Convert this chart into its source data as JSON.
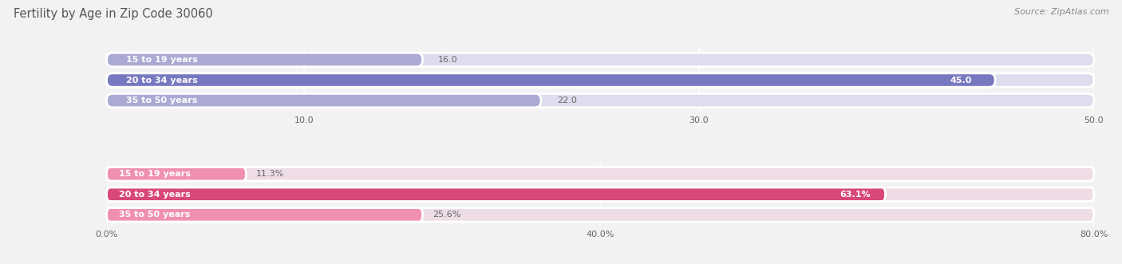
{
  "title": "Fertility by Age in Zip Code 30060",
  "source": "Source: ZipAtlas.com",
  "top_bars": {
    "categories": [
      "15 to 19 years",
      "20 to 34 years",
      "35 to 50 years"
    ],
    "values": [
      16.0,
      45.0,
      22.0
    ],
    "value_labels": [
      "16.0",
      "45.0",
      "22.0"
    ],
    "xlim": [
      0,
      50
    ],
    "xticks": [
      10.0,
      30.0,
      50.0
    ],
    "xtick_labels": [
      "10.0",
      "30.0",
      "50.0"
    ],
    "colors": [
      "#aaaad4",
      "#7878c0",
      "#aaaad4"
    ],
    "bar_bg": "#dddded"
  },
  "bottom_bars": {
    "categories": [
      "15 to 19 years",
      "20 to 34 years",
      "35 to 50 years"
    ],
    "values": [
      11.3,
      63.1,
      25.6
    ],
    "value_labels": [
      "11.3%",
      "63.1%",
      "25.6%"
    ],
    "xlim": [
      0,
      80
    ],
    "xticks": [
      0.0,
      40.0,
      80.0
    ],
    "xtick_labels": [
      "0.0%",
      "40.0%",
      "80.0%"
    ],
    "colors": [
      "#f090b0",
      "#d84878",
      "#f090b0"
    ],
    "bar_bg": "#eedde6"
  },
  "label_color": "#666666",
  "value_color": "#666666",
  "title_color": "#555555",
  "source_color": "#888888",
  "bg_color": "#f2f2f2",
  "bar_height": 0.68,
  "label_fontsize": 8.0,
  "value_fontsize": 8.0,
  "tick_fontsize": 8.0
}
